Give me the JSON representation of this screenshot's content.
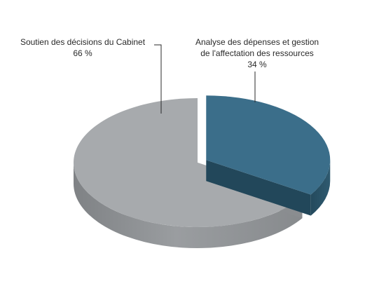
{
  "chart_data": {
    "type": "pie",
    "title": "",
    "slices": [
      {
        "label": "Soutien des décisions du Cabinet",
        "value_text": "66 %",
        "value": 66,
        "color": "#a7aaad",
        "side_color": "#8d9093"
      },
      {
        "label_lines": [
          "Analyse des dépenses et gestion",
          "de l'affectation des ressources"
        ],
        "value_text": "34 %",
        "value": 34,
        "color": "#3b6e8a",
        "side_color": "#2a5267"
      }
    ],
    "style": "3d-exploded",
    "legend": "none",
    "grid": false
  }
}
